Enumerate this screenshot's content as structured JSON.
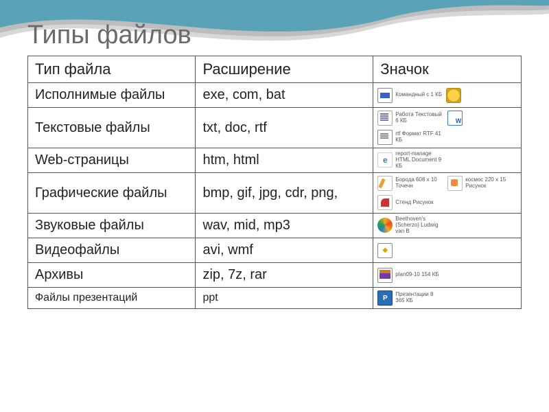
{
  "title": "Типы файлов",
  "header": {
    "c1": "Тип файла",
    "c2": "Расширение",
    "c3": "Значок"
  },
  "rows": [
    {
      "type": "Исполнимые файлы",
      "ext": "exe, com, bat",
      "icons": [
        {
          "name": "bat-window-icon",
          "cls": "thumb-bat",
          "label": "Командный с\n1 КБ"
        },
        {
          "name": "gear-icon",
          "cls": "thumb-gear",
          "label": ""
        }
      ]
    },
    {
      "type": "Текстовые файлы",
      "ext": "txt, doc, rtf",
      "icons": [
        {
          "name": "txt-icon",
          "cls": "thumb-txt",
          "label": "Работа\nТекстовый\n6 КБ"
        },
        {
          "name": "doc-icon",
          "cls": "thumb-doc",
          "label": ""
        },
        {
          "name": "rtf-icon",
          "cls": "thumb-rtf",
          "label": "rtf\nФормат RTF\n41 КБ"
        }
      ]
    },
    {
      "type": "Web-страницы",
      "ext": "htm, html",
      "icons": [
        {
          "name": "ie-icon",
          "cls": "thumb-ie",
          "label": "report-manage\nHTML Document\n9 КБ"
        }
      ]
    },
    {
      "type": "Графические файлы",
      "ext": "bmp, gif, jpg, cdr, png,",
      "icons": [
        {
          "name": "paint-icon",
          "cls": "thumb-paint",
          "label": "Борода\n608 x 10\nТочечн"
        },
        {
          "name": "png-icon",
          "cls": "thumb-png",
          "label": "космос\n220 x 15\nРисунок"
        },
        {
          "name": "cdr-icon",
          "cls": "thumb-cdr",
          "label": "Стенд\nРисунок"
        }
      ]
    },
    {
      "type": "Звуковые файлы",
      "ext": "wav, mid, mp3",
      "icons": [
        {
          "name": "wmp-icon",
          "cls": "thumb-wmp",
          "label": "Beethoven's (Scherzo)\nLudwig van B"
        }
      ]
    },
    {
      "type": "Видеофайлы",
      "ext": "avi, wmf",
      "icons": [
        {
          "name": "video-page-icon",
          "cls": "thumb-page",
          "label": ""
        }
      ]
    },
    {
      "type": "Архивы",
      "ext": "zip, 7z, rar",
      "icons": [
        {
          "name": "rar-icon",
          "cls": "thumb-rar",
          "label": "plan09-10\n154 КБ"
        }
      ]
    },
    {
      "type": "Файлы презентаций",
      "ext": "ppt",
      "small": true,
      "icons": [
        {
          "name": "ppt-icon",
          "cls": "thumb-ppt",
          "label": "Презентации\n8 365 КБ"
        }
      ]
    }
  ],
  "styling": {
    "title_color": "#6a6a6a",
    "title_fontsize": 38,
    "cell_fontsize": 20,
    "small_row_fontsize": 16,
    "border_color": "#555555",
    "wave_colors": [
      "#5aa2b8",
      "#bdbdbd",
      "#d8d8d8"
    ],
    "background_color": "#ffffff",
    "columns": [
      "Тип файла",
      "Расширение",
      "Значок"
    ],
    "col_widths_pct": [
      34,
      36,
      30
    ]
  }
}
